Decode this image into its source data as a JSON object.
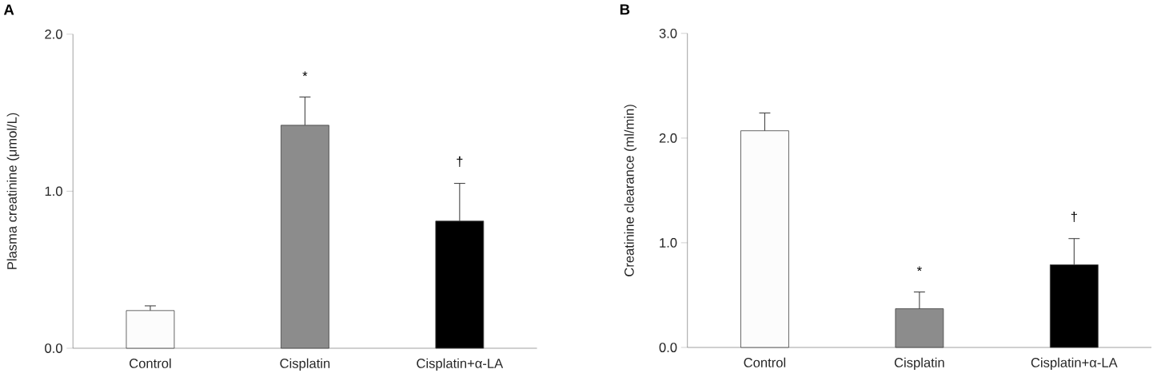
{
  "chart_data": [
    {
      "type": "bar",
      "title": "A",
      "ylabel": "Plasma creatinine (μmol/L)",
      "categories": [
        "Control",
        "Cisplatin",
        "Cisplatin+α-LA"
      ],
      "values": [
        0.24,
        1.42,
        0.81
      ],
      "errors": [
        [
          0.24,
          0.27
        ],
        [
          1.42,
          1.6
        ],
        [
          0.81,
          1.05
        ]
      ],
      "colors": [
        "#fcfcfc",
        "#8c8c8c",
        "#000000"
      ],
      "ylim": [
        0,
        2.0
      ],
      "yticks": [
        {
          "value": 0,
          "label": "0.0"
        },
        {
          "value": 1,
          "label": "1.0"
        },
        {
          "value": 2,
          "label": "2.0"
        }
      ],
      "annotations": [
        "*",
        "†"
      ]
    },
    {
      "type": "bar",
      "title": "B",
      "ylabel": "Creatinine clearance (ml/min)",
      "categories": [
        "Control",
        "Cisplatin",
        "Cisplatin+α-LA"
      ],
      "values": [
        2.07,
        0.37,
        0.79
      ],
      "errors": [
        [
          2.07,
          2.24
        ],
        [
          0.37,
          0.53
        ],
        [
          0.79,
          1.04
        ]
      ],
      "colors": [
        "#fcfcfc",
        "#8c8c8c",
        "#000000"
      ],
      "ylim": [
        0,
        3.0
      ],
      "yticks": [
        {
          "value": 0,
          "label": "0.0"
        },
        {
          "value": 1,
          "label": "1.0"
        },
        {
          "value": 2,
          "label": "2.0"
        },
        {
          "value": 3,
          "label": "3.0"
        }
      ],
      "annotations": [
        "*",
        "†"
      ]
    }
  ]
}
